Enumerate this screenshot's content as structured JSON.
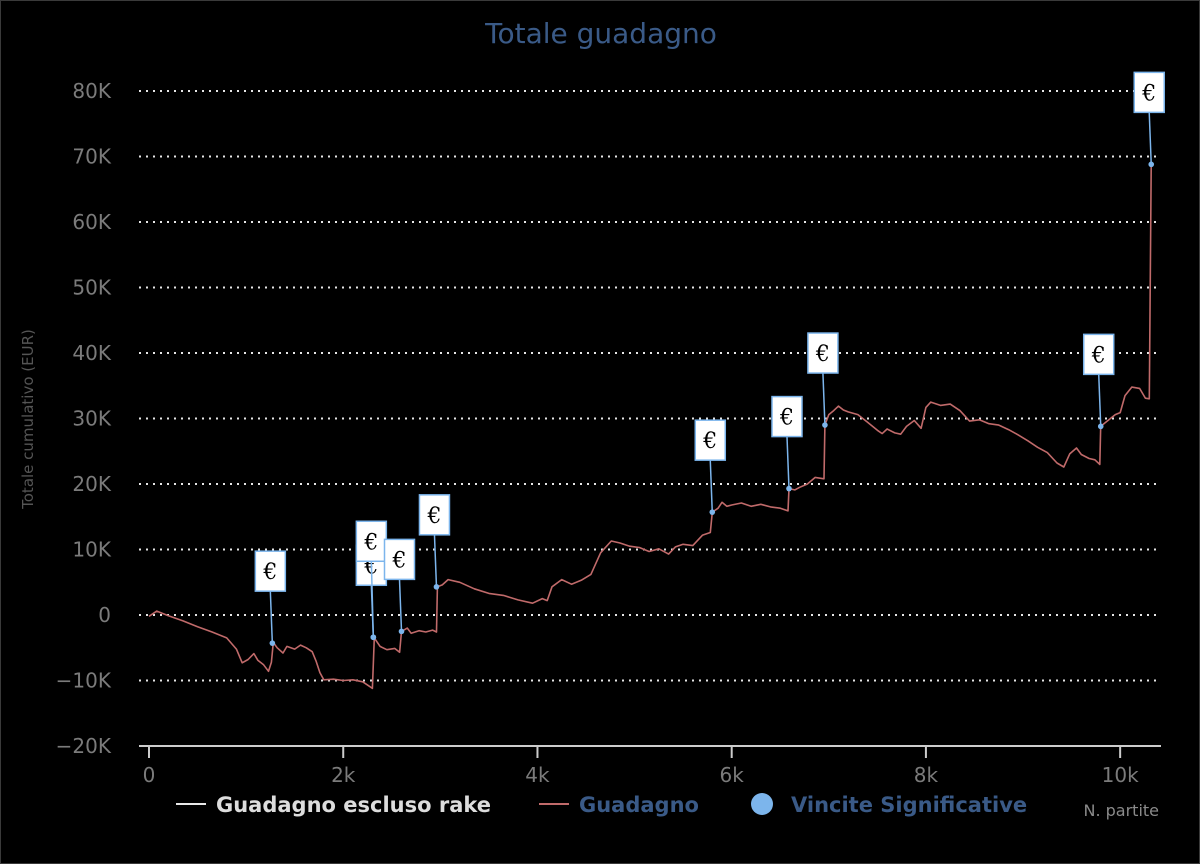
{
  "chart_data": {
    "type": "line",
    "title": "Totale guadagno",
    "xlabel": "N. partite",
    "ylabel": "Totale cumulativo (EUR)",
    "xlim": [
      0,
      10400
    ],
    "ylim": [
      -20000,
      80000
    ],
    "x_ticks": [
      {
        "value": 0,
        "label": "0"
      },
      {
        "value": 2000,
        "label": "2k"
      },
      {
        "value": 4000,
        "label": "4k"
      },
      {
        "value": 6000,
        "label": "6k"
      },
      {
        "value": 8000,
        "label": "8k"
      },
      {
        "value": 10000,
        "label": "10k"
      }
    ],
    "y_ticks": [
      {
        "value": -20000,
        "label": "−20K"
      },
      {
        "value": -10000,
        "label": "−10K"
      },
      {
        "value": 0,
        "label": "0"
      },
      {
        "value": 10000,
        "label": "10K"
      },
      {
        "value": 20000,
        "label": "20K"
      },
      {
        "value": 30000,
        "label": "30K"
      },
      {
        "value": 40000,
        "label": "40K"
      },
      {
        "value": 50000,
        "label": "50K"
      },
      {
        "value": 60000,
        "label": "60K"
      },
      {
        "value": 70000,
        "label": "70K"
      },
      {
        "value": 80000,
        "label": "80K"
      }
    ],
    "grid": true,
    "legend_position": "bottom",
    "colors": {
      "guadagno": "#c06a6a",
      "escluso_rake": "#e8e8e8",
      "vincite": "#7cb5ec",
      "title": "#3a5a87",
      "flag_border": "#7cb5ec"
    },
    "series": [
      {
        "name": "Guadagno",
        "points": [
          [
            0,
            -200
          ],
          [
            80,
            600
          ],
          [
            200,
            -100
          ],
          [
            350,
            -900
          ],
          [
            500,
            -1800
          ],
          [
            650,
            -2600
          ],
          [
            800,
            -3500
          ],
          [
            900,
            -5200
          ],
          [
            960,
            -7300
          ],
          [
            1020,
            -6800
          ],
          [
            1080,
            -5900
          ],
          [
            1120,
            -6900
          ],
          [
            1180,
            -7600
          ],
          [
            1230,
            -8600
          ],
          [
            1260,
            -7200
          ],
          [
            1280,
            -4200
          ],
          [
            1320,
            -5000
          ],
          [
            1380,
            -5800
          ],
          [
            1420,
            -4800
          ],
          [
            1500,
            -5200
          ],
          [
            1560,
            -4600
          ],
          [
            1620,
            -5000
          ],
          [
            1680,
            -5600
          ],
          [
            1720,
            -7000
          ],
          [
            1760,
            -8800
          ],
          [
            1800,
            -9900
          ],
          [
            1900,
            -9800
          ],
          [
            2000,
            -10000
          ],
          [
            2100,
            -9900
          ],
          [
            2200,
            -10200
          ],
          [
            2260,
            -10800
          ],
          [
            2300,
            -11200
          ],
          [
            2320,
            -3500
          ],
          [
            2380,
            -4800
          ],
          [
            2450,
            -5300
          ],
          [
            2530,
            -5100
          ],
          [
            2580,
            -5700
          ],
          [
            2600,
            -2500
          ],
          [
            2660,
            -2000
          ],
          [
            2700,
            -2800
          ],
          [
            2780,
            -2400
          ],
          [
            2850,
            -2600
          ],
          [
            2920,
            -2300
          ],
          [
            2960,
            -2600
          ],
          [
            2970,
            4300
          ],
          [
            3020,
            4600
          ],
          [
            3080,
            5400
          ],
          [
            3200,
            5000
          ],
          [
            3350,
            4000
          ],
          [
            3500,
            3300
          ],
          [
            3650,
            3000
          ],
          [
            3800,
            2300
          ],
          [
            3950,
            1800
          ],
          [
            4050,
            2500
          ],
          [
            4100,
            2200
          ],
          [
            4150,
            4300
          ],
          [
            4250,
            5400
          ],
          [
            4350,
            4700
          ],
          [
            4450,
            5300
          ],
          [
            4550,
            6200
          ],
          [
            4650,
            9500
          ],
          [
            4760,
            11300
          ],
          [
            4850,
            11000
          ],
          [
            4950,
            10500
          ],
          [
            5050,
            10300
          ],
          [
            5150,
            9700
          ],
          [
            5250,
            10100
          ],
          [
            5350,
            9300
          ],
          [
            5420,
            10400
          ],
          [
            5500,
            10800
          ],
          [
            5600,
            10600
          ],
          [
            5700,
            12200
          ],
          [
            5780,
            12600
          ],
          [
            5800,
            15700
          ],
          [
            5860,
            16300
          ],
          [
            5900,
            17200
          ],
          [
            5950,
            16600
          ],
          [
            6000,
            16800
          ],
          [
            6100,
            17100
          ],
          [
            6200,
            16600
          ],
          [
            6300,
            16900
          ],
          [
            6400,
            16500
          ],
          [
            6500,
            16300
          ],
          [
            6580,
            15900
          ],
          [
            6590,
            19300
          ],
          [
            6650,
            19100
          ],
          [
            6700,
            19500
          ],
          [
            6780,
            20000
          ],
          [
            6860,
            21000
          ],
          [
            6950,
            20800
          ],
          [
            6960,
            29000
          ],
          [
            7000,
            30600
          ],
          [
            7050,
            31200
          ],
          [
            7100,
            31900
          ],
          [
            7150,
            31300
          ],
          [
            7200,
            31000
          ],
          [
            7300,
            30600
          ],
          [
            7400,
            29400
          ],
          [
            7500,
            28200
          ],
          [
            7550,
            27700
          ],
          [
            7600,
            28400
          ],
          [
            7680,
            27800
          ],
          [
            7740,
            27600
          ],
          [
            7800,
            28800
          ],
          [
            7880,
            29700
          ],
          [
            7950,
            28500
          ],
          [
            8000,
            31700
          ],
          [
            8050,
            32500
          ],
          [
            8150,
            32000
          ],
          [
            8250,
            32200
          ],
          [
            8350,
            31200
          ],
          [
            8450,
            29600
          ],
          [
            8550,
            29800
          ],
          [
            8650,
            29200
          ],
          [
            8750,
            29000
          ],
          [
            8850,
            28300
          ],
          [
            8950,
            27500
          ],
          [
            9050,
            26600
          ],
          [
            9150,
            25600
          ],
          [
            9250,
            24800
          ],
          [
            9350,
            23200
          ],
          [
            9420,
            22600
          ],
          [
            9480,
            24600
          ],
          [
            9550,
            25500
          ],
          [
            9600,
            24500
          ],
          [
            9680,
            23900
          ],
          [
            9740,
            23700
          ],
          [
            9790,
            23000
          ],
          [
            9800,
            28800
          ],
          [
            9850,
            29400
          ],
          [
            9900,
            30000
          ],
          [
            9950,
            30600
          ],
          [
            10000,
            30900
          ],
          [
            10050,
            33500
          ],
          [
            10120,
            34800
          ],
          [
            10200,
            34600
          ],
          [
            10260,
            33100
          ],
          [
            10300,
            33000
          ],
          [
            10320,
            68500
          ],
          [
            10340,
            69000
          ]
        ]
      },
      {
        "name": "Vincite Significative",
        "points": [
          [
            1270,
            -4300
          ],
          [
            2310,
            -3400
          ],
          [
            2600,
            -2500
          ],
          [
            2960,
            4300
          ],
          [
            5800,
            15700
          ],
          [
            6590,
            19300
          ],
          [
            6960,
            29000
          ],
          [
            9800,
            28800
          ],
          [
            10320,
            68800
          ]
        ]
      },
      {
        "name": "Guadagno escluso rake",
        "points": []
      }
    ],
    "flags": [
      {
        "x": 1270,
        "y": -4300,
        "text": "€"
      },
      {
        "x": 2310,
        "y": -3400,
        "text": "€"
      },
      {
        "x": 2310,
        "y": -3400,
        "text": "€"
      },
      {
        "x": 2600,
        "y": -2500,
        "text": "€"
      },
      {
        "x": 2960,
        "y": 4300,
        "text": "€"
      },
      {
        "x": 5800,
        "y": 15700,
        "text": "€"
      },
      {
        "x": 6590,
        "y": 19300,
        "text": "€"
      },
      {
        "x": 6960,
        "y": 29000,
        "text": "€"
      },
      {
        "x": 9800,
        "y": 28800,
        "text": "€"
      },
      {
        "x": 10320,
        "y": 68800,
        "text": "€"
      }
    ],
    "legend": [
      {
        "name": "Guadagno escluso rake",
        "symbol": "line",
        "color": "#e8e8e8",
        "text_color": "#dddddd"
      },
      {
        "name": "Guadagno",
        "symbol": "line",
        "color": "#c06a6a",
        "text_color": "#3a5a87"
      },
      {
        "name": "Vincite Significative",
        "symbol": "circle",
        "color": "#7cb5ec",
        "text_color": "#3a5a87"
      }
    ]
  }
}
